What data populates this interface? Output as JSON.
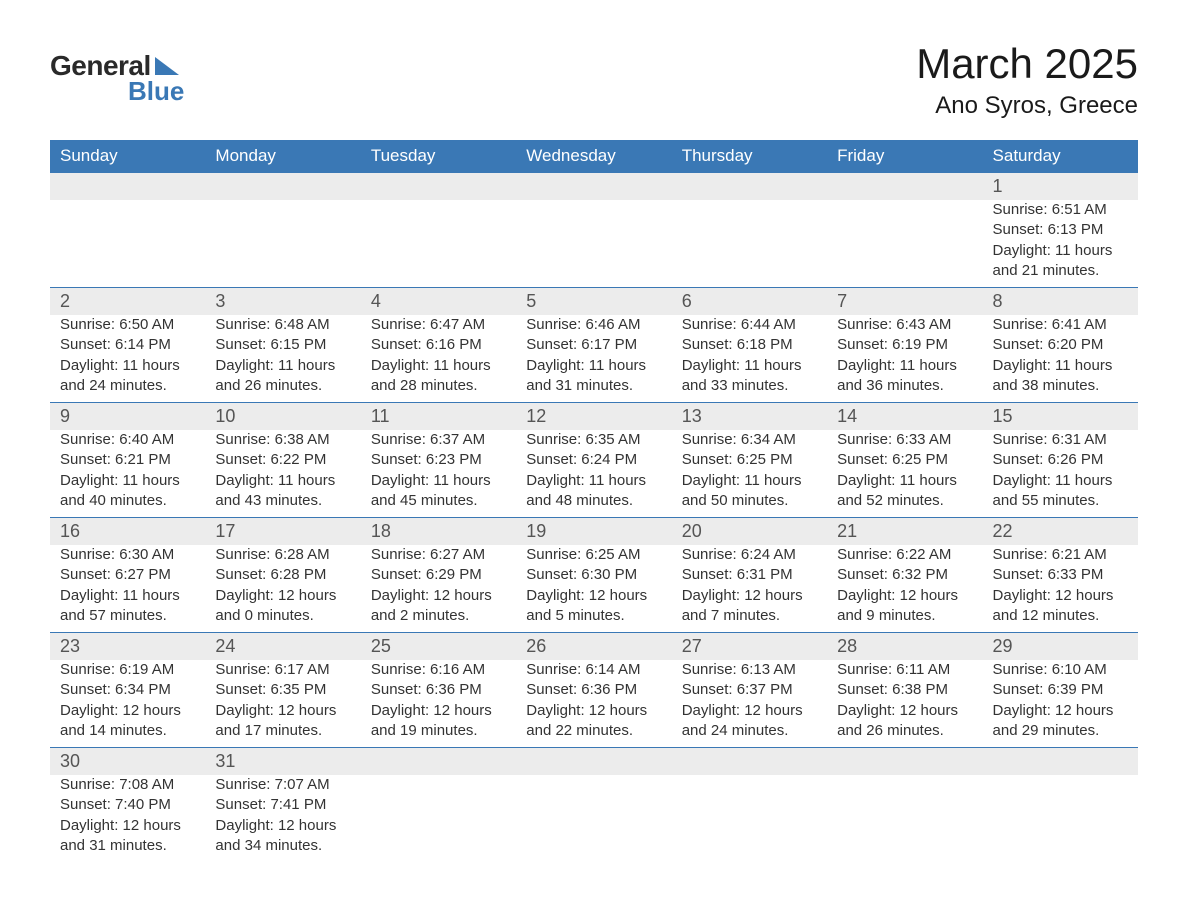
{
  "brand": {
    "word1": "General",
    "word2": "Blue"
  },
  "title": "March 2025",
  "location": "Ano Syros, Greece",
  "colors": {
    "header_bg": "#3a78b5",
    "header_text": "#ffffff",
    "daynum_bg": "#ececec",
    "text": "#333333",
    "border": "#3a78b5"
  },
  "weekdays": [
    "Sunday",
    "Monday",
    "Tuesday",
    "Wednesday",
    "Thursday",
    "Friday",
    "Saturday"
  ],
  "labels": {
    "sunrise": "Sunrise:",
    "sunset": "Sunset:",
    "daylight": "Daylight:"
  },
  "weeks": [
    [
      null,
      null,
      null,
      null,
      null,
      null,
      {
        "d": "1",
        "sr": "6:51 AM",
        "ss": "6:13 PM",
        "dl": "11 hours and 21 minutes."
      }
    ],
    [
      {
        "d": "2",
        "sr": "6:50 AM",
        "ss": "6:14 PM",
        "dl": "11 hours and 24 minutes."
      },
      {
        "d": "3",
        "sr": "6:48 AM",
        "ss": "6:15 PM",
        "dl": "11 hours and 26 minutes."
      },
      {
        "d": "4",
        "sr": "6:47 AM",
        "ss": "6:16 PM",
        "dl": "11 hours and 28 minutes."
      },
      {
        "d": "5",
        "sr": "6:46 AM",
        "ss": "6:17 PM",
        "dl": "11 hours and 31 minutes."
      },
      {
        "d": "6",
        "sr": "6:44 AM",
        "ss": "6:18 PM",
        "dl": "11 hours and 33 minutes."
      },
      {
        "d": "7",
        "sr": "6:43 AM",
        "ss": "6:19 PM",
        "dl": "11 hours and 36 minutes."
      },
      {
        "d": "8",
        "sr": "6:41 AM",
        "ss": "6:20 PM",
        "dl": "11 hours and 38 minutes."
      }
    ],
    [
      {
        "d": "9",
        "sr": "6:40 AM",
        "ss": "6:21 PM",
        "dl": "11 hours and 40 minutes."
      },
      {
        "d": "10",
        "sr": "6:38 AM",
        "ss": "6:22 PM",
        "dl": "11 hours and 43 minutes."
      },
      {
        "d": "11",
        "sr": "6:37 AM",
        "ss": "6:23 PM",
        "dl": "11 hours and 45 minutes."
      },
      {
        "d": "12",
        "sr": "6:35 AM",
        "ss": "6:24 PM",
        "dl": "11 hours and 48 minutes."
      },
      {
        "d": "13",
        "sr": "6:34 AM",
        "ss": "6:25 PM",
        "dl": "11 hours and 50 minutes."
      },
      {
        "d": "14",
        "sr": "6:33 AM",
        "ss": "6:25 PM",
        "dl": "11 hours and 52 minutes."
      },
      {
        "d": "15",
        "sr": "6:31 AM",
        "ss": "6:26 PM",
        "dl": "11 hours and 55 minutes."
      }
    ],
    [
      {
        "d": "16",
        "sr": "6:30 AM",
        "ss": "6:27 PM",
        "dl": "11 hours and 57 minutes."
      },
      {
        "d": "17",
        "sr": "6:28 AM",
        "ss": "6:28 PM",
        "dl": "12 hours and 0 minutes."
      },
      {
        "d": "18",
        "sr": "6:27 AM",
        "ss": "6:29 PM",
        "dl": "12 hours and 2 minutes."
      },
      {
        "d": "19",
        "sr": "6:25 AM",
        "ss": "6:30 PM",
        "dl": "12 hours and 5 minutes."
      },
      {
        "d": "20",
        "sr": "6:24 AM",
        "ss": "6:31 PM",
        "dl": "12 hours and 7 minutes."
      },
      {
        "d": "21",
        "sr": "6:22 AM",
        "ss": "6:32 PM",
        "dl": "12 hours and 9 minutes."
      },
      {
        "d": "22",
        "sr": "6:21 AM",
        "ss": "6:33 PM",
        "dl": "12 hours and 12 minutes."
      }
    ],
    [
      {
        "d": "23",
        "sr": "6:19 AM",
        "ss": "6:34 PM",
        "dl": "12 hours and 14 minutes."
      },
      {
        "d": "24",
        "sr": "6:17 AM",
        "ss": "6:35 PM",
        "dl": "12 hours and 17 minutes."
      },
      {
        "d": "25",
        "sr": "6:16 AM",
        "ss": "6:36 PM",
        "dl": "12 hours and 19 minutes."
      },
      {
        "d": "26",
        "sr": "6:14 AM",
        "ss": "6:36 PM",
        "dl": "12 hours and 22 minutes."
      },
      {
        "d": "27",
        "sr": "6:13 AM",
        "ss": "6:37 PM",
        "dl": "12 hours and 24 minutes."
      },
      {
        "d": "28",
        "sr": "6:11 AM",
        "ss": "6:38 PM",
        "dl": "12 hours and 26 minutes."
      },
      {
        "d": "29",
        "sr": "6:10 AM",
        "ss": "6:39 PM",
        "dl": "12 hours and 29 minutes."
      }
    ],
    [
      {
        "d": "30",
        "sr": "7:08 AM",
        "ss": "7:40 PM",
        "dl": "12 hours and 31 minutes."
      },
      {
        "d": "31",
        "sr": "7:07 AM",
        "ss": "7:41 PM",
        "dl": "12 hours and 34 minutes."
      },
      null,
      null,
      null,
      null,
      null
    ]
  ]
}
